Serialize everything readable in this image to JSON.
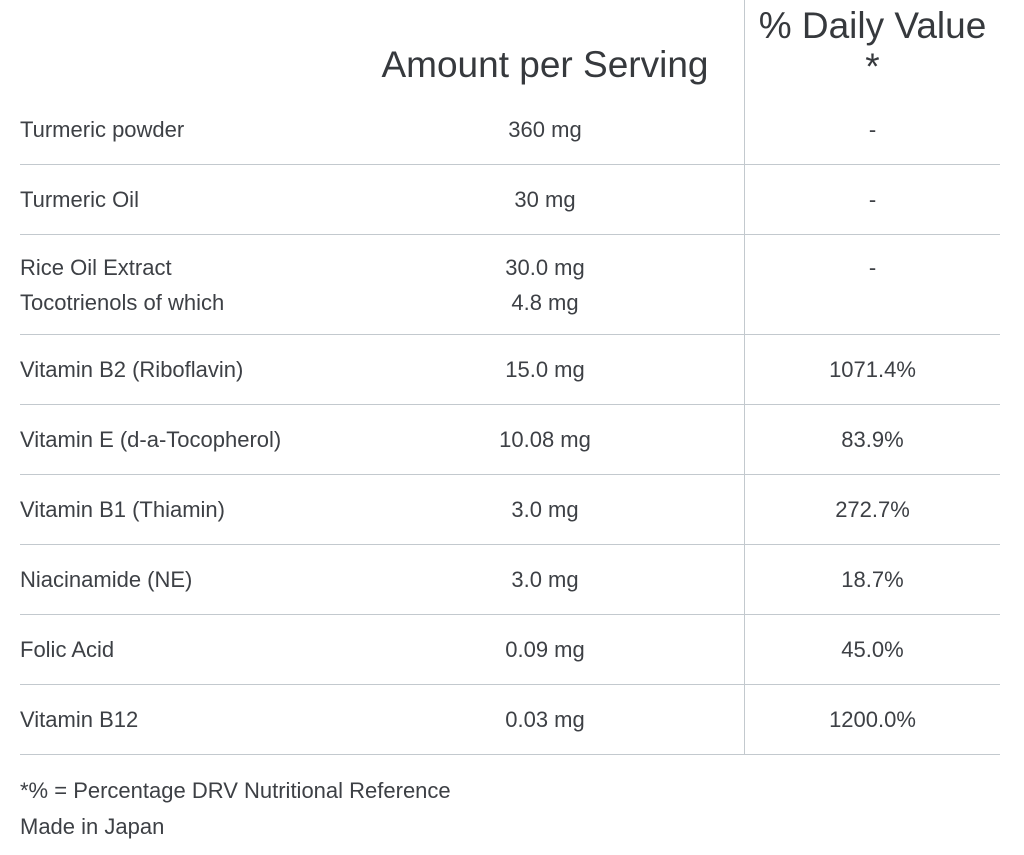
{
  "colors": {
    "background": "#ffffff",
    "text": "#3d4045",
    "header_text": "#36393d",
    "rule_line": "#c3c9ce"
  },
  "header": {
    "amount_label": "Amount per Serving",
    "daily_value_label": "% Daily Value",
    "daily_value_asterisk": "*"
  },
  "rows": [
    {
      "label": "Turmeric powder",
      "amount": "360 mg",
      "dv": "-"
    },
    {
      "label": "Turmeric Oil",
      "amount": "30 mg",
      "dv": "-"
    },
    {
      "label": "Rice Oil Extract",
      "label2": "Tocotrienols of which",
      "amount": "30.0 mg",
      "amount2": "4.8 mg",
      "dv": "-"
    },
    {
      "label": "Vitamin B2 (Riboflavin)",
      "amount": "15.0 mg",
      "dv": "1071.4%"
    },
    {
      "label": "Vitamin E (d-a-Tocopherol)",
      "amount": "10.08 mg",
      "dv": "83.9%"
    },
    {
      "label": "Vitamin B1 (Thiamin)",
      "amount": "3.0 mg",
      "dv": "272.7%"
    },
    {
      "label": "Niacinamide (NE)",
      "amount": "3.0 mg",
      "dv": "18.7%"
    },
    {
      "label": "Folic Acid",
      "amount": "0.09 mg",
      "dv": "45.0%"
    },
    {
      "label": "Vitamin B12",
      "amount": "0.03 mg",
      "dv": "1200.0%"
    }
  ],
  "footnotes": {
    "drv_note": "*% = Percentage DRV Nutritional Reference",
    "origin_note": "Made in Japan"
  }
}
